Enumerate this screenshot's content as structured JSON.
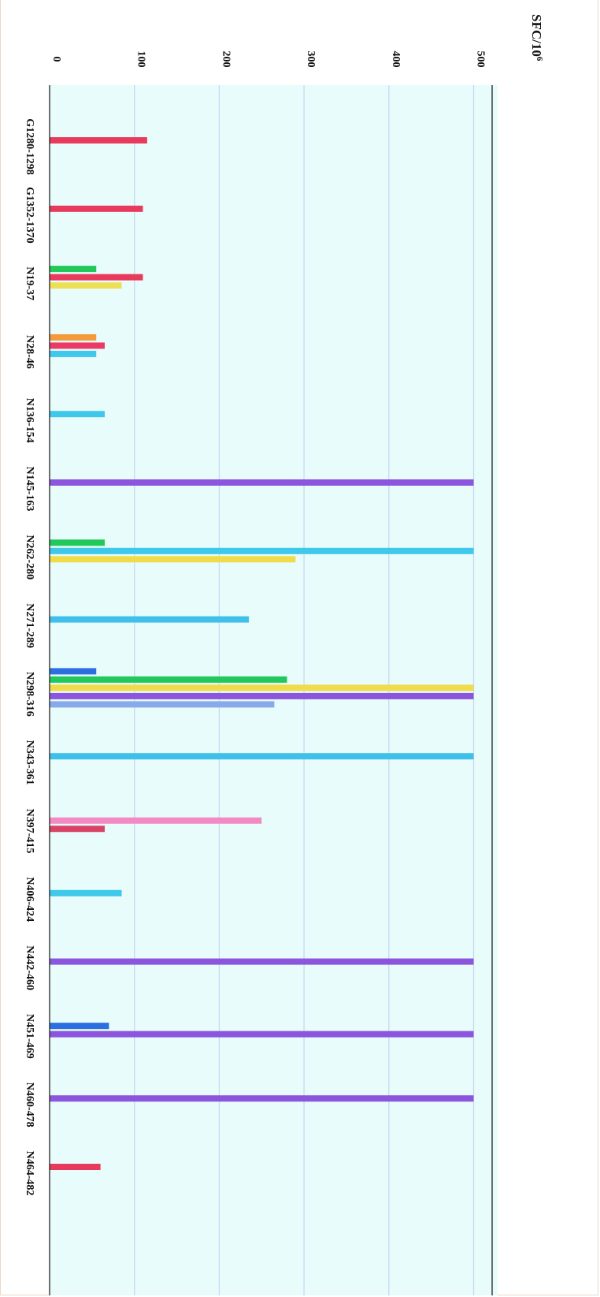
{
  "chart_data": {
    "type": "bar",
    "orientation": "horizontal",
    "rotated_view": true,
    "title": "",
    "xlabel": "",
    "ylabel": "SFC/10",
    "ylabel_superscript": "6",
    "ylim": [
      0,
      525
    ],
    "yticks": [
      "0",
      "100",
      "200",
      "300",
      "400",
      "500"
    ],
    "grid": true,
    "legend": "none",
    "categories": [
      "G1280-1298",
      "G1352-1370",
      "N19-37",
      "N28-46",
      "N136-154",
      "N145-163",
      "N262-280",
      "N271-289",
      "N298-316",
      "N343-361",
      "N397-415",
      "N406-424",
      "N442-460",
      "N451-469",
      "N460-478",
      "N464-482"
    ],
    "groups": [
      [
        {
          "value": 115,
          "color": "#e83a5c"
        }
      ],
      [
        {
          "value": 110,
          "color": "#e83a5c"
        }
      ],
      [
        {
          "value": 55,
          "color": "#22c95a"
        },
        {
          "value": 110,
          "color": "#e83a5c"
        },
        {
          "value": 85,
          "color": "#ece058"
        }
      ],
      [
        {
          "value": 55,
          "color": "#f49a3a"
        },
        {
          "value": 65,
          "color": "#ec3a66"
        },
        {
          "value": 55,
          "color": "#3ec8ea"
        }
      ],
      [
        {
          "value": 65,
          "color": "#3ec8ea"
        }
      ],
      [
        {
          "value": 500,
          "color": "#8c55de"
        }
      ],
      [
        {
          "value": 65,
          "color": "#22c95a"
        },
        {
          "value": 500,
          "color": "#3ec8ea"
        },
        {
          "value": 290,
          "color": "#f0dc48"
        }
      ],
      [
        {
          "value": 235,
          "color": "#3ec0ea"
        }
      ],
      [
        {
          "value": 55,
          "color": "#2c6fe0"
        },
        {
          "value": 280,
          "color": "#22c95a"
        },
        {
          "value": 500,
          "color": "#f0dc48"
        },
        {
          "value": 500,
          "color": "#8c55de"
        },
        {
          "value": 265,
          "color": "#86aaea"
        }
      ],
      [
        {
          "value": 500,
          "color": "#3ec0ea"
        }
      ],
      [
        {
          "value": 250,
          "color": "#f48ac4"
        },
        {
          "value": 65,
          "color": "#d94466"
        }
      ],
      [
        {
          "value": 85,
          "color": "#3ec8ea"
        }
      ],
      [
        {
          "value": 500,
          "color": "#8c55de"
        }
      ],
      [
        {
          "value": 70,
          "color": "#2c6fe0"
        },
        {
          "value": 500,
          "color": "#8c55de"
        }
      ],
      [
        {
          "value": 500,
          "color": "#8c55de"
        }
      ],
      [
        {
          "value": 60,
          "color": "#e83a5c"
        }
      ]
    ],
    "colors": {
      "plot_background": "#e8fcfc",
      "gridline": "#c6d9f2",
      "axis": "#222222"
    }
  }
}
